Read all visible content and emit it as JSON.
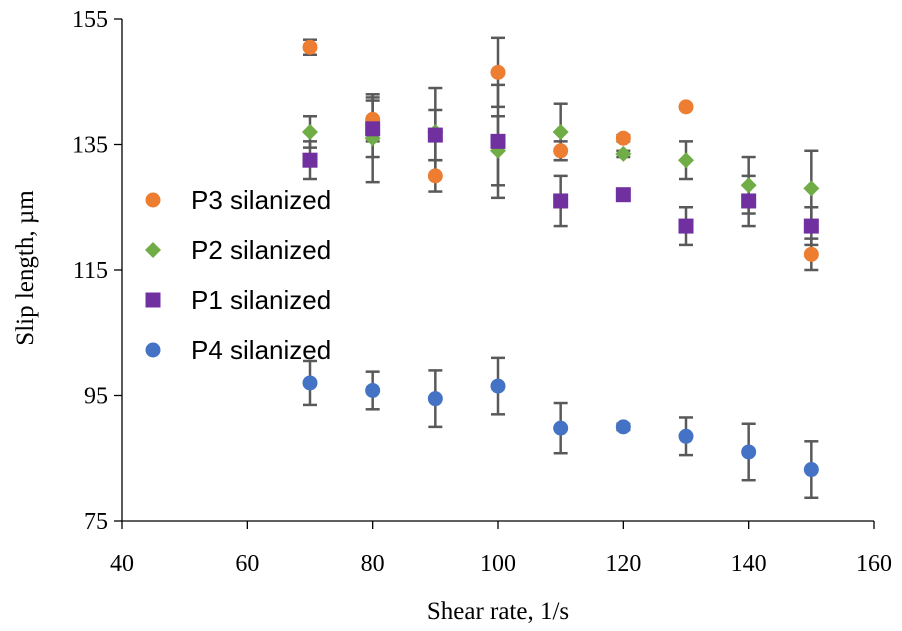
{
  "chart_data": {
    "type": "scatter",
    "title": "",
    "xlabel": "Shear rate, 1/s",
    "ylabel": "Slip length, µm",
    "xlim": [
      40,
      160
    ],
    "ylim": [
      75,
      155
    ],
    "x_ticks": [
      "40",
      "60",
      "80",
      "100",
      "120",
      "140",
      "160"
    ],
    "y_ticks": [
      "75",
      "95",
      "115",
      "135",
      "155"
    ],
    "grid": false,
    "legend_position": "left",
    "series": [
      {
        "name": "P3 silanized",
        "marker": "circle",
        "color": "#ED7D31",
        "x": [
          70,
          80,
          90,
          100,
          110,
          120,
          130,
          150
        ],
        "y": [
          150.5,
          139,
          130,
          146.5,
          134,
          136,
          141,
          117.5
        ],
        "err": [
          1.2,
          3.5,
          2.5,
          5.5,
          1.5,
          0.5,
          0,
          2.5
        ]
      },
      {
        "name": "P2 silanized",
        "marker": "diamond",
        "color": "#70AD47",
        "x": [
          70,
          80,
          90,
          100,
          110,
          120,
          130,
          140,
          150
        ],
        "y": [
          137,
          136,
          137,
          134,
          137,
          133.5,
          132.5,
          128.5,
          128
        ],
        "err": [
          2.5,
          7,
          7,
          5.5,
          4.5,
          0.5,
          3,
          4.5,
          6
        ]
      },
      {
        "name": "P1 silanized",
        "marker": "square",
        "color": "#7030A0",
        "x": [
          70,
          80,
          90,
          100,
          110,
          120,
          130,
          140,
          150
        ],
        "y": [
          132.5,
          137.5,
          136.5,
          135.5,
          126,
          127,
          122,
          126,
          122
        ],
        "err": [
          3,
          4.5,
          4,
          9,
          4,
          0,
          3,
          4,
          3
        ]
      },
      {
        "name": "P4 silanized",
        "marker": "circle",
        "color": "#4472C4",
        "x": [
          70,
          80,
          90,
          100,
          110,
          120,
          130,
          140,
          150
        ],
        "y": [
          97,
          95.8,
          94.5,
          96.5,
          89.8,
          90,
          88.5,
          86,
          83.2
        ],
        "err": [
          3.5,
          3,
          4.5,
          4.5,
          4,
          0.5,
          3,
          4.5,
          4.5
        ]
      }
    ]
  }
}
